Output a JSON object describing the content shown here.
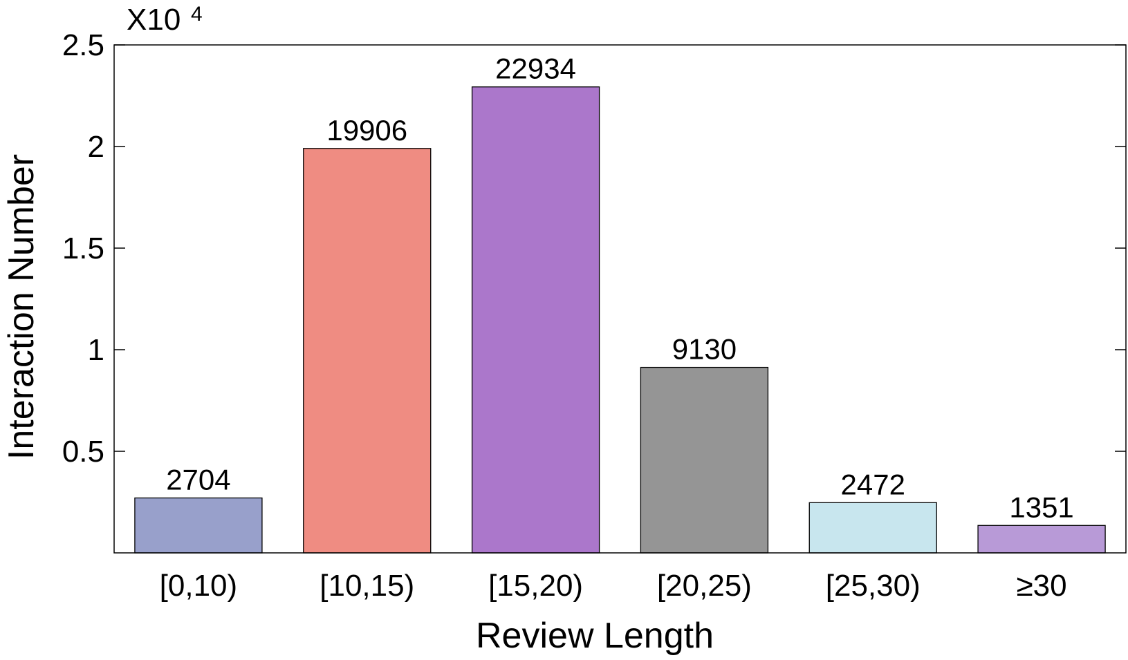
{
  "chart_data": {
    "type": "bar",
    "xlabel": "Review Length",
    "ylabel": "Interaction Number",
    "y_multiplier": {
      "base": "X10",
      "exponent": "4"
    },
    "categories": [
      "[0,10)",
      "[10,15)",
      "[15,20)",
      "[20,25)",
      "[25,30)",
      "≥30"
    ],
    "values": [
      2704,
      19906,
      22934,
      9130,
      2472,
      1351
    ],
    "data_labels": [
      "2704",
      "19906",
      "22934",
      "9130",
      "2472",
      "1351"
    ],
    "colors": [
      "#98a0cb",
      "#ef8c82",
      "#ab77cb",
      "#959595",
      "#c8e6ee",
      "#b89ad7"
    ],
    "ylim": [
      0,
      25000
    ],
    "yticks": [
      5000,
      10000,
      15000,
      20000,
      25000
    ],
    "ytick_labels": [
      "0.5",
      "1",
      "1.5",
      "2",
      "2.5"
    ],
    "grid": false,
    "legend": "none"
  }
}
